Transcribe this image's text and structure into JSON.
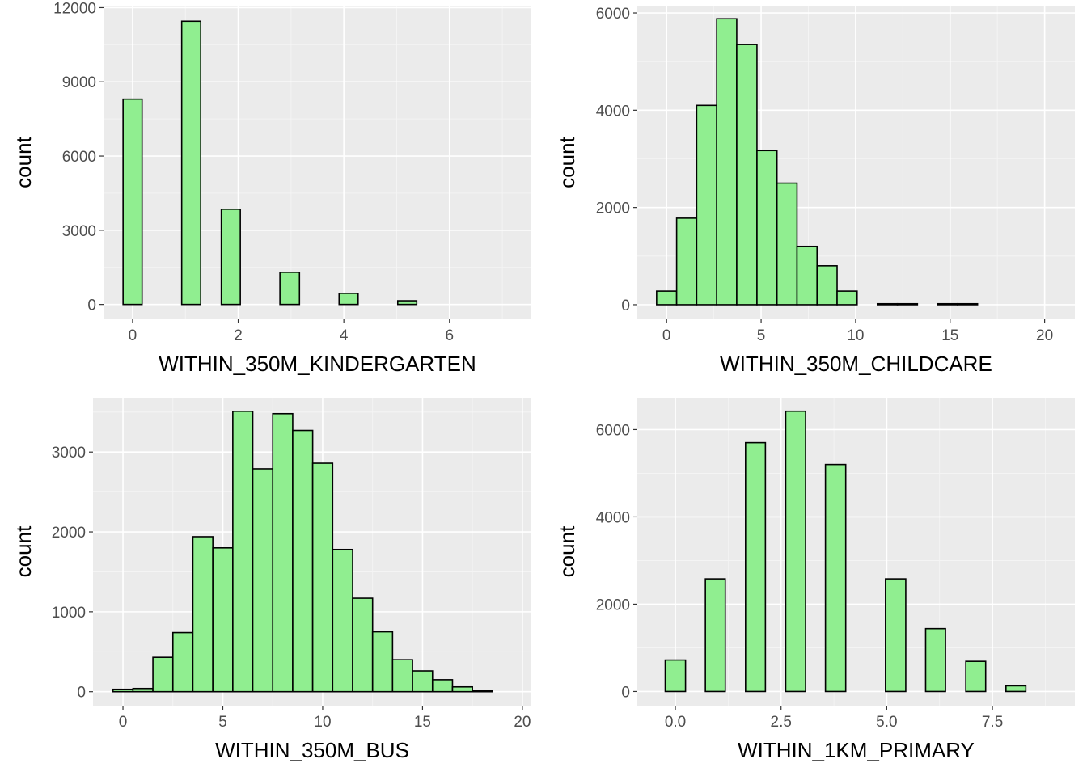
{
  "chart_data": [
    {
      "type": "bar",
      "subtype": "histogram",
      "xlabel": "WITHIN_350M_KINDERGARTEN",
      "ylabel": "count",
      "xlim": [
        -0.55,
        7.55
      ],
      "ylim": [
        -600,
        12080
      ],
      "x_ticks": [
        0,
        2,
        4,
        6
      ],
      "x_tick_labels": [
        "0",
        "2",
        "4",
        "6"
      ],
      "y_ticks": [
        0,
        3000,
        6000,
        9000,
        12000
      ],
      "y_tick_labels": [
        "0",
        "3000",
        "6000",
        "9000",
        "12000"
      ],
      "grid": true,
      "fill_color": "#90EE90",
      "edge_color": "#000000",
      "bins": [
        {
          "start": -0.18,
          "end": 0.18,
          "count": 8300
        },
        {
          "start": 0.18,
          "end": 0.93,
          "count": 0
        },
        {
          "start": 0.93,
          "end": 1.29,
          "count": 11450
        },
        {
          "start": 1.29,
          "end": 1.68,
          "count": 0
        },
        {
          "start": 1.68,
          "end": 2.04,
          "count": 3850
        },
        {
          "start": 2.04,
          "end": 2.79,
          "count": 0
        },
        {
          "start": 2.79,
          "end": 3.16,
          "count": 1300
        },
        {
          "start": 3.16,
          "end": 3.91,
          "count": 0
        },
        {
          "start": 3.91,
          "end": 4.27,
          "count": 450
        },
        {
          "start": 4.27,
          "end": 5.02,
          "count": 0
        },
        {
          "start": 5.02,
          "end": 5.38,
          "count": 150
        },
        {
          "start": 5.38,
          "end": 7.13,
          "count": 0
        }
      ]
    },
    {
      "type": "bar",
      "subtype": "histogram",
      "xlabel": "WITHIN_350M_CHILDCARE",
      "ylabel": "count",
      "xlim": [
        -1.55,
        21.6
      ],
      "ylim": [
        -300,
        6150
      ],
      "x_ticks": [
        0,
        5,
        10,
        15,
        20
      ],
      "x_tick_labels": [
        "0",
        "5",
        "10",
        "15",
        "20"
      ],
      "y_ticks": [
        0,
        2000,
        4000,
        6000
      ],
      "y_tick_labels": [
        "0",
        "2000",
        "4000",
        "6000"
      ],
      "grid": true,
      "fill_color": "#90EE90",
      "edge_color": "#000000",
      "bins": [
        {
          "start": -0.53,
          "end": 0.53,
          "count": 280
        },
        {
          "start": 0.53,
          "end": 1.59,
          "count": 1780
        },
        {
          "start": 1.59,
          "end": 2.65,
          "count": 4100
        },
        {
          "start": 2.65,
          "end": 3.71,
          "count": 5880
        },
        {
          "start": 3.71,
          "end": 4.78,
          "count": 5350
        },
        {
          "start": 4.78,
          "end": 5.84,
          "count": 3170
        },
        {
          "start": 5.84,
          "end": 6.9,
          "count": 2500
        },
        {
          "start": 6.9,
          "end": 7.96,
          "count": 1200
        },
        {
          "start": 7.96,
          "end": 9.02,
          "count": 800
        },
        {
          "start": 9.02,
          "end": 10.08,
          "count": 280
        },
        {
          "start": 10.08,
          "end": 11.15,
          "count": 0
        },
        {
          "start": 11.15,
          "end": 12.21,
          "count": 20
        },
        {
          "start": 12.21,
          "end": 13.27,
          "count": 20
        },
        {
          "start": 13.27,
          "end": 14.33,
          "count": 0
        },
        {
          "start": 14.33,
          "end": 15.39,
          "count": 20
        },
        {
          "start": 15.39,
          "end": 16.45,
          "count": 20
        },
        {
          "start": 16.45,
          "end": 20.55,
          "count": 0
        }
      ]
    },
    {
      "type": "bar",
      "subtype": "histogram",
      "xlabel": "WITHIN_350M_BUS",
      "ylabel": "count",
      "xlim": [
        -1.5,
        20.45
      ],
      "ylim": [
        -175,
        3680
      ],
      "x_ticks": [
        0,
        5,
        10,
        15,
        20
      ],
      "x_tick_labels": [
        "0",
        "5",
        "10",
        "15",
        "20"
      ],
      "y_ticks": [
        0,
        1000,
        2000,
        3000
      ],
      "y_tick_labels": [
        "0",
        "1000",
        "2000",
        "3000"
      ],
      "grid": true,
      "fill_color": "#90EE90",
      "edge_color": "#000000",
      "bins": [
        {
          "start": -0.5,
          "end": 0.5,
          "count": 30
        },
        {
          "start": 0.5,
          "end": 1.5,
          "count": 40
        },
        {
          "start": 1.5,
          "end": 2.5,
          "count": 430
        },
        {
          "start": 2.5,
          "end": 3.5,
          "count": 740
        },
        {
          "start": 3.5,
          "end": 4.5,
          "count": 1940
        },
        {
          "start": 4.5,
          "end": 5.5,
          "count": 1800
        },
        {
          "start": 5.5,
          "end": 6.5,
          "count": 3510
        },
        {
          "start": 6.5,
          "end": 7.5,
          "count": 2790
        },
        {
          "start": 7.5,
          "end": 8.5,
          "count": 3480
        },
        {
          "start": 8.5,
          "end": 9.5,
          "count": 3270
        },
        {
          "start": 9.5,
          "end": 10.5,
          "count": 2860
        },
        {
          "start": 10.5,
          "end": 11.5,
          "count": 1780
        },
        {
          "start": 11.5,
          "end": 12.5,
          "count": 1170
        },
        {
          "start": 12.5,
          "end": 13.5,
          "count": 750
        },
        {
          "start": 13.5,
          "end": 14.5,
          "count": 400
        },
        {
          "start": 14.5,
          "end": 15.5,
          "count": 260
        },
        {
          "start": 15.5,
          "end": 16.5,
          "count": 150
        },
        {
          "start": 16.5,
          "end": 17.5,
          "count": 60
        },
        {
          "start": 17.5,
          "end": 18.5,
          "count": 15
        },
        {
          "start": 18.5,
          "end": 19.5,
          "count": 0
        }
      ]
    },
    {
      "type": "bar",
      "subtype": "histogram",
      "xlabel": "WITHIN_1KM_PRIMARY",
      "ylabel": "count",
      "xlim": [
        -0.9,
        9.45
      ],
      "ylim": [
        -325,
        6730
      ],
      "x_ticks": [
        0,
        2.5,
        5,
        7.5
      ],
      "x_tick_labels": [
        "0.0",
        "2.5",
        "5.0",
        "7.5"
      ],
      "y_ticks": [
        0,
        2000,
        4000,
        6000
      ],
      "y_tick_labels": [
        "0",
        "2000",
        "4000",
        "6000"
      ],
      "grid": true,
      "fill_color": "#90EE90",
      "edge_color": "#000000",
      "bins": [
        {
          "start": -0.24,
          "end": 0.24,
          "count": 720
        },
        {
          "start": 0.24,
          "end": 0.71,
          "count": 0
        },
        {
          "start": 0.71,
          "end": 1.18,
          "count": 2580
        },
        {
          "start": 1.18,
          "end": 1.66,
          "count": 0
        },
        {
          "start": 1.66,
          "end": 2.13,
          "count": 5700
        },
        {
          "start": 2.13,
          "end": 2.61,
          "count": 0
        },
        {
          "start": 2.61,
          "end": 3.08,
          "count": 6420
        },
        {
          "start": 3.08,
          "end": 3.55,
          "count": 0
        },
        {
          "start": 3.55,
          "end": 4.03,
          "count": 5200
        },
        {
          "start": 4.03,
          "end": 4.97,
          "count": 0
        },
        {
          "start": 4.97,
          "end": 5.45,
          "count": 2580
        },
        {
          "start": 5.45,
          "end": 5.92,
          "count": 0
        },
        {
          "start": 5.92,
          "end": 6.39,
          "count": 1440
        },
        {
          "start": 6.39,
          "end": 6.87,
          "count": 0
        },
        {
          "start": 6.87,
          "end": 7.34,
          "count": 690
        },
        {
          "start": 7.34,
          "end": 7.82,
          "count": 0
        },
        {
          "start": 7.82,
          "end": 8.29,
          "count": 130
        },
        {
          "start": 8.29,
          "end": 9.24,
          "count": 0
        }
      ]
    }
  ]
}
